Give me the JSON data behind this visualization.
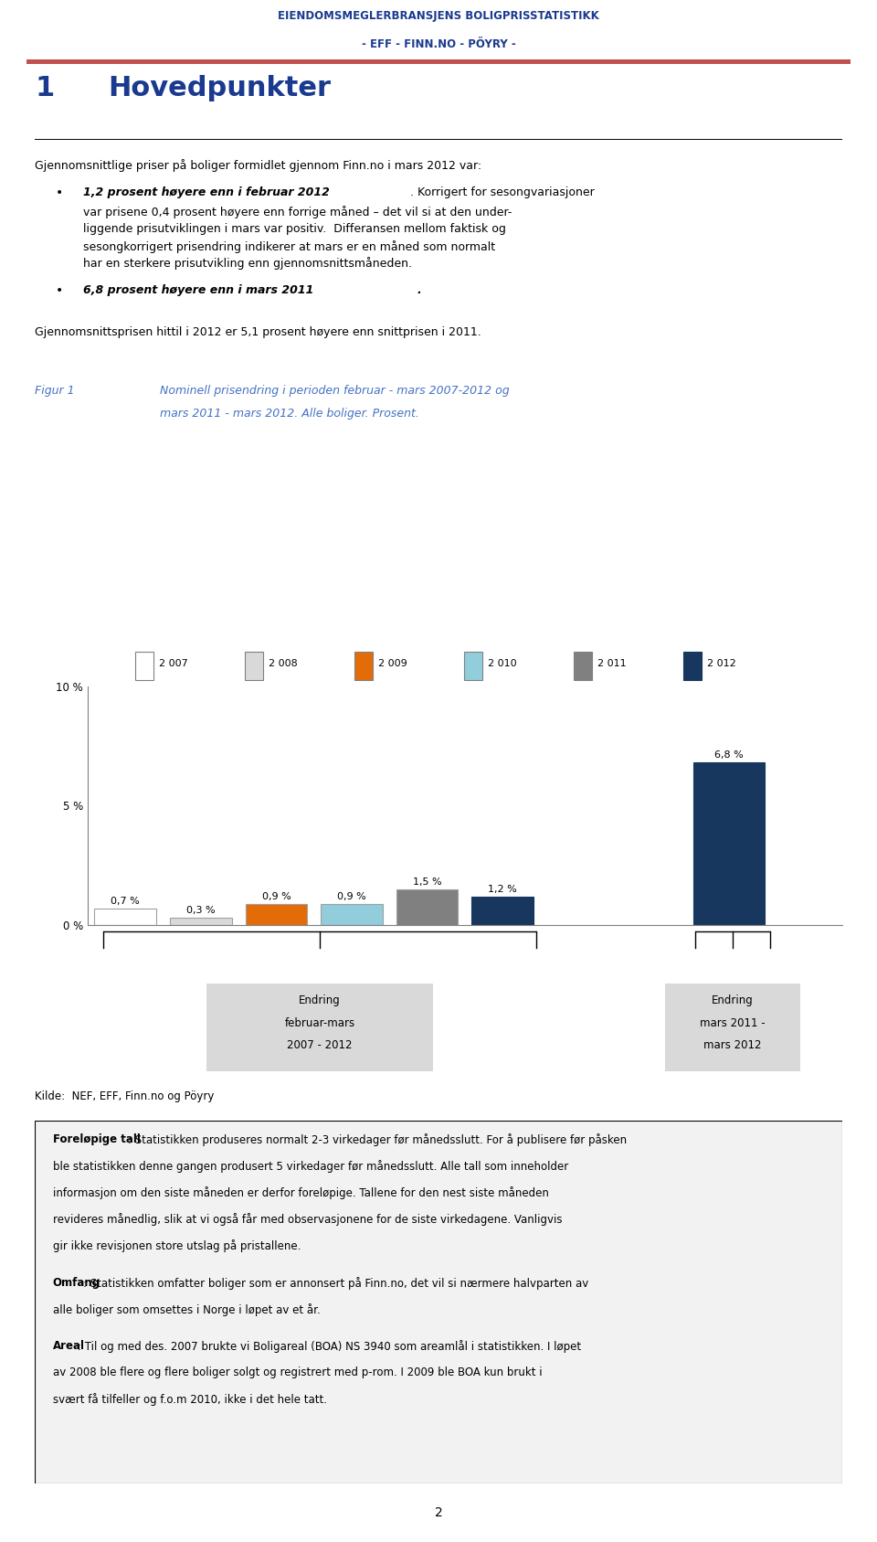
{
  "header_line1": "EIENDOMSMEGLERBRANSJENS BOLIGPRISSTATISTIKK",
  "header_line2": "- EFF - FINN.NO - PÖYRY -",
  "header_color": "#1a3a8f",
  "header_line_color": "#c0504d",
  "page_bg": "#ffffff",
  "section_number": "1",
  "section_title": "Hovedpunkter",
  "section_color": "#1a3a8f",
  "fig_label": "Figur 1",
  "fig_title_line1": "Nominell prisendring i perioden februar - mars 2007-2012 og",
  "fig_title_line2": "mars 2011 - mars 2012. Alle boliger. Prosent.",
  "fig_title_color": "#4472c4",
  "legend_labels": [
    "2 007",
    "2 008",
    "2 009",
    "2 010",
    "2 011",
    "2 012"
  ],
  "legend_colors": [
    "#ffffff",
    "#d9d9d9",
    "#e36c09",
    "#92cddc",
    "#808080",
    "#17375e"
  ],
  "legend_edge_colors": [
    "#808080",
    "#808080",
    "#808080",
    "#808080",
    "#808080",
    "#17375e"
  ],
  "group1_values": [
    0.7,
    0.3,
    0.9,
    0.9,
    1.5,
    1.2
  ],
  "group1_colors": [
    "#ffffff",
    "#d9d9d9",
    "#e36c09",
    "#92cddc",
    "#808080",
    "#17375e"
  ],
  "group1_edges": [
    "#a0a0a0",
    "#a0a0a0",
    "#a0a0a0",
    "#a0a0a0",
    "#a0a0a0",
    "#17375e"
  ],
  "group1_labels": [
    "0,7 %",
    "0,3 %",
    "0,9 %",
    "0,9 %",
    "1,5 %",
    "1,2 %"
  ],
  "group2_value": 6.8,
  "group2_color": "#17375e",
  "group2_edge": "#17375e",
  "group2_label": "6,8 %",
  "ytick_labels": [
    "0 %",
    "5 %",
    "10 %"
  ],
  "ytick_vals": [
    0,
    5,
    10
  ],
  "ylim": [
    0,
    10
  ],
  "group1_box_label": [
    "Endring",
    "februar-mars",
    "2007 - 2012"
  ],
  "group2_box_label": [
    "Endring",
    "mars 2011 -",
    "mars 2012"
  ],
  "source_text": "Kilde:  NEF, EFF, Finn.no og Pöyry",
  "footer_bg": "#f2f2f2",
  "footer_title1": "Foreløpige tall",
  "footer_body1": ": Statistikken produseres normalt 2-3 virkedager før månedsslutt. For å publisere før påsken ble statistikken denne gangen produsert 5 virkedager før månedsslutt. Alle tall som inneholder informasjon om den siste måneden er derfor foreløpige. Tallene for den nest siste måneden revideres månedlig, slik at vi også får med observasjonene for de siste virkedagene. Vanligvis gir ikke revisjonen store utslag på pristallene.",
  "footer_title2": "Omfang",
  "footer_body2": ": Statistikken omfatter boliger som er annonsert på Finn.no, det vil si nærmere halvparten av alle boliger som omsettes i Norge i løpet av et år.",
  "footer_title3": "Areal",
  "footer_body3": ": Til og med des. 2007 brukte vi Boligareal (BOA) NS 3940 som areamlål i statistikken. I løpet av 2008 ble flere og flere boliger solgt og registrert med p-rom. I 2009 ble BOA kun brukt i svært få tilfeller og f.o.m 2010, ikke i det hele tatt.",
  "page_number": "2"
}
